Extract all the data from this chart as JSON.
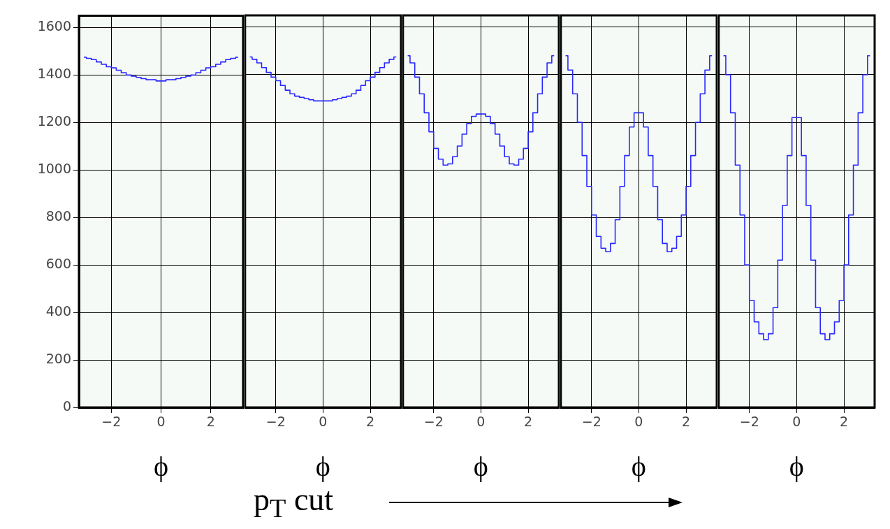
{
  "chart_data": [
    {
      "type": "step",
      "xlabel": "ϕ",
      "x": [
        -3.1,
        -2.9,
        -2.7,
        -2.5,
        -2.3,
        -2.1,
        -1.9,
        -1.7,
        -1.5,
        -1.3,
        -1.1,
        -0.9,
        -0.7,
        -0.5,
        -0.3,
        -0.1,
        0.1,
        0.3,
        0.5,
        0.7,
        0.9,
        1.1,
        1.3,
        1.5,
        1.7,
        1.9,
        2.1,
        2.3,
        2.5,
        2.7,
        2.9,
        3.1
      ],
      "series": [
        {
          "color": "#2828ff",
          "values": [
            1475,
            1470,
            1465,
            1455,
            1445,
            1435,
            1430,
            1420,
            1410,
            1400,
            1395,
            1390,
            1385,
            1380,
            1380,
            1375,
            1375,
            1380,
            1380,
            1385,
            1390,
            1395,
            1400,
            1410,
            1420,
            1430,
            1435,
            1445,
            1455,
            1465,
            1470,
            1475
          ]
        }
      ],
      "xlim": [
        -3.3,
        3.3
      ],
      "xticks": [
        -2,
        0,
        2
      ],
      "ylim": [
        0,
        1650
      ],
      "yticks": [
        0,
        200,
        400,
        600,
        800,
        1000,
        1200,
        1400,
        1600
      ],
      "grid": true,
      "legend": false,
      "annotations": [
        "p$_{T}$ cut"
      ]
    },
    {
      "type": "step",
      "xlabel": "ϕ",
      "x": [
        -3.1,
        -2.9,
        -2.7,
        -2.5,
        -2.3,
        -2.1,
        -1.9,
        -1.7,
        -1.5,
        -1.3,
        -1.1,
        -0.9,
        -0.7,
        -0.5,
        -0.3,
        -0.1,
        0.1,
        0.3,
        0.5,
        0.7,
        0.9,
        1.1,
        1.3,
        1.5,
        1.7,
        1.9,
        2.1,
        2.3,
        2.5,
        2.7,
        2.9,
        3.1
      ],
      "series": [
        {
          "color": "#2828ff",
          "values": [
            1475,
            1465,
            1450,
            1430,
            1410,
            1390,
            1375,
            1355,
            1335,
            1320,
            1310,
            1305,
            1300,
            1295,
            1290,
            1290,
            1290,
            1290,
            1295,
            1300,
            1305,
            1310,
            1320,
            1335,
            1355,
            1375,
            1390,
            1410,
            1430,
            1450,
            1465,
            1475
          ]
        }
      ],
      "xlim": [
        -3.3,
        3.3
      ],
      "xticks": [
        -2,
        0,
        2
      ],
      "ylim": [
        0,
        1650
      ],
      "yticks": [
        0,
        200,
        400,
        600,
        800,
        1000,
        1200,
        1400,
        1600
      ],
      "grid": true,
      "legend": false,
      "tick_labels": "x"
    },
    {
      "type": "step",
      "xlabel": "ϕ",
      "x": [
        -3.1,
        -2.9,
        -2.7,
        -2.5,
        -2.3,
        -2.1,
        -1.9,
        -1.7,
        -1.5,
        -1.3,
        -1.1,
        -0.9,
        -0.7,
        -0.5,
        -0.3,
        -0.1,
        0.1,
        0.3,
        0.5,
        0.7,
        0.9,
        1.1,
        1.3,
        1.5,
        1.7,
        1.9,
        2.1,
        2.3,
        2.5,
        2.7,
        2.9,
        3.1
      ],
      "series": [
        {
          "color": "#2828ff",
          "values": [
            1480,
            1450,
            1390,
            1320,
            1240,
            1160,
            1090,
            1045,
            1020,
            1025,
            1055,
            1100,
            1150,
            1195,
            1225,
            1235,
            1235,
            1225,
            1195,
            1150,
            1100,
            1055,
            1025,
            1020,
            1045,
            1090,
            1160,
            1240,
            1320,
            1390,
            1450,
            1480
          ]
        }
      ],
      "xlim": [
        -3.3,
        3.3
      ],
      "xticks": [
        -2,
        0,
        2
      ],
      "ylim": [
        0,
        1650
      ],
      "yticks": [
        0,
        200,
        400,
        600,
        800,
        1000,
        1200,
        1400,
        1600
      ],
      "grid": true,
      "legend": false,
      "tick_labels": "x"
    },
    {
      "type": "step",
      "xlabel": "ϕ",
      "x": [
        -3.1,
        -2.9,
        -2.7,
        -2.5,
        -2.3,
        -2.1,
        -1.9,
        -1.7,
        -1.5,
        -1.3,
        -1.1,
        -0.9,
        -0.7,
        -0.5,
        -0.3,
        -0.1,
        0.1,
        0.3,
        0.5,
        0.7,
        0.9,
        1.1,
        1.3,
        1.5,
        1.7,
        1.9,
        2.1,
        2.3,
        2.5,
        2.7,
        2.9,
        3.1
      ],
      "series": [
        {
          "color": "#2828ff",
          "values": [
            1480,
            1420,
            1320,
            1200,
            1060,
            930,
            810,
            720,
            670,
            655,
            690,
            790,
            930,
            1060,
            1180,
            1240,
            1240,
            1180,
            1060,
            930,
            790,
            690,
            655,
            670,
            720,
            810,
            930,
            1060,
            1200,
            1320,
            1420,
            1480
          ]
        }
      ],
      "xlim": [
        -3.3,
        3.3
      ],
      "xticks": [
        -2,
        0,
        2
      ],
      "ylim": [
        0,
        1650
      ],
      "yticks": [
        0,
        200,
        400,
        600,
        800,
        1000,
        1200,
        1400,
        1600
      ],
      "grid": true,
      "legend": false,
      "tick_labels": "x"
    },
    {
      "type": "step",
      "xlabel": "ϕ",
      "x": [
        -3.1,
        -2.9,
        -2.7,
        -2.5,
        -2.3,
        -2.1,
        -1.9,
        -1.7,
        -1.5,
        -1.3,
        -1.1,
        -0.9,
        -0.7,
        -0.5,
        -0.3,
        -0.1,
        0.1,
        0.3,
        0.5,
        0.7,
        0.9,
        1.1,
        1.3,
        1.5,
        1.7,
        1.9,
        2.1,
        2.3,
        2.5,
        2.7,
        2.9,
        3.1
      ],
      "series": [
        {
          "color": "#2828ff",
          "values": [
            1480,
            1400,
            1240,
            1020,
            810,
            600,
            450,
            360,
            310,
            285,
            310,
            420,
            620,
            850,
            1060,
            1220,
            1220,
            1060,
            850,
            620,
            420,
            310,
            285,
            310,
            360,
            450,
            600,
            810,
            1020,
            1240,
            1400,
            1480
          ]
        }
      ],
      "xlim": [
        -3.3,
        3.3
      ],
      "xticks": [
        -2,
        0,
        2
      ],
      "ylim": [
        0,
        1650
      ],
      "yticks": [
        0,
        200,
        400,
        600,
        800,
        1000,
        1200,
        1400,
        1600
      ],
      "grid": true,
      "legend": false,
      "tick_labels": "x"
    }
  ]
}
